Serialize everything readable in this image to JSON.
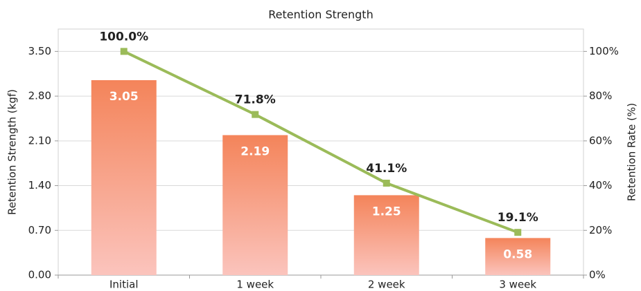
{
  "chart_data": {
    "type": "bar_line",
    "title": "Retention Strength",
    "y_label": "Retention Strength (kgf)",
    "y2_label": "Retention Rate (%)",
    "categories": [
      "Initial",
      "1 week",
      "2 week",
      "3 week"
    ],
    "series": [
      {
        "type": "bar",
        "color": "#f4845a",
        "gradient_to": "#fbc4bd",
        "values": [
          3.05,
          2.19,
          1.25,
          0.58
        ]
      },
      {
        "type": "line",
        "axis": "y2",
        "color": "#9bbb59",
        "values": [
          100.0,
          71.8,
          41.1,
          19.1
        ],
        "value_labels": [
          "100.0%",
          "71.8%",
          "41.1%",
          "19.1%"
        ]
      }
    ],
    "ylim": [
      0,
      3.85
    ],
    "yticks": [
      {
        "value": 0,
        "label": "0.00"
      },
      {
        "value": 0.7,
        "label": "0.70"
      },
      {
        "value": 1.4,
        "label": "1.40"
      },
      {
        "value": 2.1,
        "label": "2.10"
      },
      {
        "value": 2.8,
        "label": "2.80"
      },
      {
        "value": 3.5,
        "label": "3.50"
      }
    ],
    "y2lim": [
      0,
      110
    ],
    "y2ticks": [
      {
        "value": 0,
        "label": "0%"
      },
      {
        "value": 20,
        "label": "20%"
      },
      {
        "value": 40,
        "label": "40%"
      },
      {
        "value": 60,
        "label": "60%"
      },
      {
        "value": 80,
        "label": "80%"
      },
      {
        "value": 100,
        "label": "100%"
      }
    ],
    "grid": true
  }
}
